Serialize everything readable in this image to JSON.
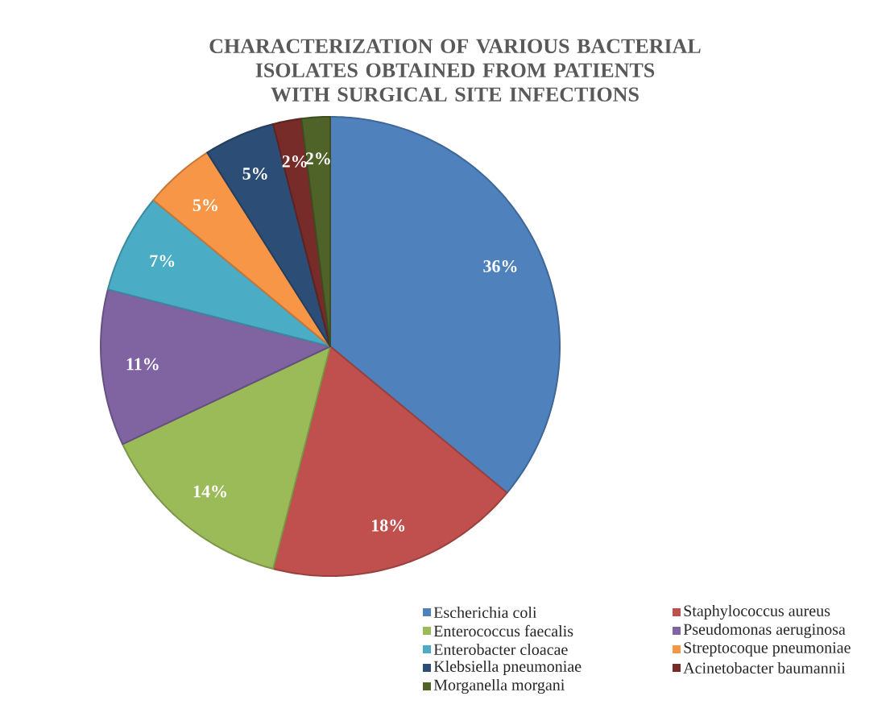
{
  "chart_data": {
    "type": "pie",
    "title": "CHARACTERIZATION OF VARIOUS BACTERIAL ISOLATES OBTAINED FROM PATIENTS WITH SURGICAL SITE INFECTIONS",
    "categories": [
      "Escherichia coli",
      "Staphylococcus aureus",
      "Enterococcus faecalis",
      "Pseudomonas aeruginosa",
      "Enterobacter cloacae",
      "Streptocoque pneumoniae",
      "Klebsiella pneumoniae",
      "Acinetobacter baumannii",
      "Morganella morgani"
    ],
    "values": [
      36,
      18,
      14,
      11,
      7,
      5,
      5,
      2,
      2
    ],
    "value_labels": [
      "36%",
      "18%",
      "14%",
      "11%",
      "7%",
      "5%",
      "5%",
      "2%",
      "2%"
    ],
    "colors": [
      "#4f81bd",
      "#c0504d",
      "#9bbb59",
      "#8064a2",
      "#4bacc6",
      "#f79646",
      "#2c4d75",
      "#772c2a",
      "#4f6228"
    ],
    "legend": "bottom"
  }
}
